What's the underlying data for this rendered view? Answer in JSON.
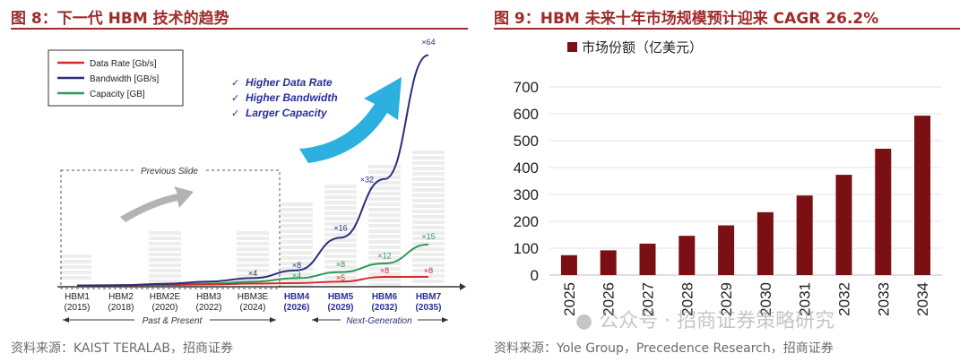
{
  "left": {
    "title": "图 8：下一代 HBM 技术的趋势",
    "source": "资料来源：KAIST TERALAB，招商证券",
    "chart_data": {
      "type": "line",
      "categories": [
        "HBM1\n(2015)",
        "HBM2\n(2018)",
        "HBM2E\n(2020)",
        "HBM3\n(2022)",
        "HBM3E\n(2024)",
        "HBM4\n(2026)",
        "HBM5\n(2029)",
        "HBM6\n(2032)",
        "HBM7\n(2035)"
      ],
      "category_names": [
        "HBM1",
        "HBM2",
        "HBM2E",
        "HBM3",
        "HBM3E",
        "HBM4",
        "HBM5",
        "HBM6",
        "HBM7"
      ],
      "category_years": [
        "(2015)",
        "(2018)",
        "(2020)",
        "(2022)",
        "(2024)",
        "(2026)",
        "(2029)",
        "(2032)",
        "(2035)"
      ],
      "series": [
        {
          "name": "Data Rate [Gb/s]",
          "color": "#d42a2a",
          "values": [
            0.2,
            0.3,
            0.5,
            0.8,
            1.3,
            1.6,
            2.5,
            5.2,
            5.2
          ]
        },
        {
          "name": "Bandwidth [GB/s]",
          "color": "#2a2f7a",
          "values": [
            0.2,
            0.4,
            1.2,
            2.5,
            4.5,
            9,
            28,
            62,
            134
          ]
        },
        {
          "name": "Capacity [GB]",
          "color": "#2e9a57",
          "values": [
            0.2,
            0.3,
            0.6,
            1.3,
            2.4,
            4.5,
            8,
            13,
            24
          ]
        }
      ],
      "annotations": [
        {
          "label": "×4",
          "x": 4,
          "y": 5.8,
          "color": "#333333"
        },
        {
          "label": "×8",
          "x": 5,
          "y": 10.5,
          "color": "#2a2f7a"
        },
        {
          "label": "×4",
          "x": 5,
          "y": 4.4,
          "color": "#2e9a57"
        },
        {
          "label": "×16",
          "x": 6,
          "y": 32,
          "color": "#2a2f7a"
        },
        {
          "label": "×8",
          "x": 6,
          "y": 11,
          "color": "#2e9a57"
        },
        {
          "label": "×5",
          "x": 6,
          "y": 3.2,
          "color": "#d42a2a"
        },
        {
          "label": "×32",
          "x": 6.6,
          "y": 60,
          "color": "#2a2f7a"
        },
        {
          "label": "×12",
          "x": 7,
          "y": 16,
          "color": "#2e9a57"
        },
        {
          "label": "×8",
          "x": 7,
          "y": 7.3,
          "color": "#d42a2a"
        },
        {
          "label": "×15",
          "x": 8,
          "y": 27,
          "color": "#2e9a57"
        },
        {
          "label": "×8",
          "x": 8,
          "y": 7.3,
          "color": "#d42a2a"
        },
        {
          "label": "×64",
          "x": 8,
          "y": 140,
          "color": "#2a2f7a"
        }
      ],
      "checklist": [
        "Higher Data Rate",
        "Higher Bandwidth",
        "Larger Capacity"
      ],
      "previous_slide_label": "Previous Slide",
      "past_label": "Past & Present",
      "next_label": "Next-Generation",
      "legend_position": "top-left",
      "highlight_color": "#2a2f9a",
      "arrow_color": "#2bb0e0"
    }
  },
  "right": {
    "title": "图 9：HBM 未来十年市场规模预计迎来 CAGR 26.2%",
    "source": "资料来源：Yole Group，Precedence Research，招商证券",
    "chart_data": {
      "type": "bar",
      "series": [
        {
          "name": "市场份额（亿美元）",
          "color": "#7a0f14",
          "values": [
            74,
            92,
            117,
            146,
            185,
            234,
            296,
            373,
            470,
            593
          ]
        }
      ],
      "categories": [
        "2025",
        "2026",
        "2027",
        "2028",
        "2029",
        "2030",
        "2031",
        "2032",
        "2033",
        "2034"
      ],
      "yticks": [
        0,
        100,
        200,
        300,
        400,
        500,
        600,
        700
      ],
      "ylim": [
        0,
        700
      ],
      "grid": true,
      "legend_position": "top-left"
    }
  },
  "watermark": "公众号 · 招商证券策略研究"
}
